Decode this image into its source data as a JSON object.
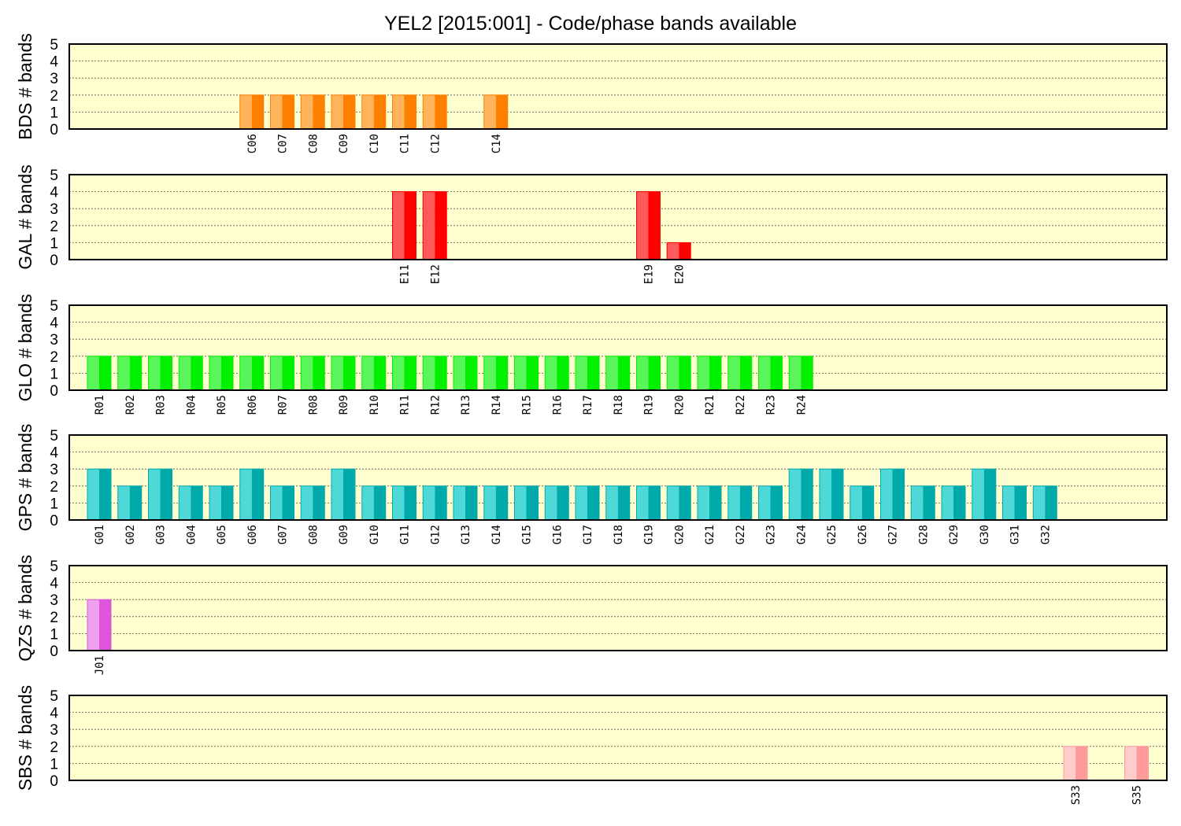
{
  "title": "YEL2 [2015:001] - Code/phase bands available",
  "chart_data": [
    {
      "type": "bar",
      "ylabel": "BDS # bands",
      "ylim": [
        0,
        5
      ],
      "yticks": [
        "0",
        "1",
        "2",
        "3",
        "4",
        "5"
      ],
      "grid": true,
      "colors": {
        "light": "#ffb35a",
        "dark": "#ff7f00"
      },
      "categories": [
        "C06",
        "C07",
        "C08",
        "C09",
        "C10",
        "C11",
        "C12",
        "C14"
      ],
      "slots": [
        6,
        7,
        8,
        9,
        10,
        11,
        12,
        14
      ],
      "values": [
        2,
        2,
        2,
        2,
        2,
        2,
        2,
        2
      ]
    },
    {
      "type": "bar",
      "ylabel": "GAL # bands",
      "ylim": [
        0,
        5
      ],
      "yticks": [
        "0",
        "1",
        "2",
        "3",
        "4",
        "5"
      ],
      "grid": true,
      "colors": {
        "light": "#ff5a5a",
        "dark": "#ff0000"
      },
      "categories": [
        "E11",
        "E12",
        "E19",
        "E20"
      ],
      "slots": [
        11,
        12,
        19,
        20
      ],
      "values": [
        4,
        4,
        4,
        1
      ]
    },
    {
      "type": "bar",
      "ylabel": "GLO # bands",
      "ylim": [
        0,
        5
      ],
      "yticks": [
        "0",
        "1",
        "2",
        "3",
        "4",
        "5"
      ],
      "grid": true,
      "colors": {
        "light": "#5af55a",
        "dark": "#00f000"
      },
      "categories": [
        "R01",
        "R02",
        "R03",
        "R04",
        "R05",
        "R06",
        "R07",
        "R08",
        "R09",
        "R10",
        "R11",
        "R12",
        "R13",
        "R14",
        "R15",
        "R16",
        "R17",
        "R18",
        "R19",
        "R20",
        "R21",
        "R22",
        "R23",
        "R24"
      ],
      "slots": [
        1,
        2,
        3,
        4,
        5,
        6,
        7,
        8,
        9,
        10,
        11,
        12,
        13,
        14,
        15,
        16,
        17,
        18,
        19,
        20,
        21,
        22,
        23,
        24
      ],
      "values": [
        2,
        2,
        2,
        2,
        2,
        2,
        2,
        2,
        2,
        2,
        2,
        2,
        2,
        2,
        2,
        2,
        2,
        2,
        2,
        2,
        2,
        2,
        2,
        2
      ]
    },
    {
      "type": "bar",
      "ylabel": "GPS # bands",
      "ylim": [
        0,
        5
      ],
      "yticks": [
        "0",
        "1",
        "2",
        "3",
        "4",
        "5"
      ],
      "grid": true,
      "colors": {
        "light": "#4ed8d8",
        "dark": "#00aaaa"
      },
      "categories": [
        "G01",
        "G02",
        "G03",
        "G04",
        "G05",
        "G06",
        "G07",
        "G08",
        "G09",
        "G10",
        "G11",
        "G12",
        "G13",
        "G14",
        "G15",
        "G16",
        "G17",
        "G18",
        "G19",
        "G20",
        "G21",
        "G22",
        "G23",
        "G24",
        "G25",
        "G26",
        "G27",
        "G28",
        "G29",
        "G30",
        "G31",
        "G32"
      ],
      "slots": [
        1,
        2,
        3,
        4,
        5,
        6,
        7,
        8,
        9,
        10,
        11,
        12,
        13,
        14,
        15,
        16,
        17,
        18,
        19,
        20,
        21,
        22,
        23,
        24,
        25,
        26,
        27,
        28,
        29,
        30,
        31,
        32
      ],
      "values": [
        3,
        2,
        3,
        2,
        2,
        3,
        2,
        2,
        3,
        2,
        2,
        2,
        2,
        2,
        2,
        2,
        2,
        2,
        2,
        2,
        2,
        2,
        2,
        3,
        3,
        2,
        3,
        2,
        2,
        3,
        2,
        2
      ]
    },
    {
      "type": "bar",
      "ylabel": "QZS # bands",
      "ylim": [
        0,
        5
      ],
      "yticks": [
        "0",
        "1",
        "2",
        "3",
        "4",
        "5"
      ],
      "grid": true,
      "colors": {
        "light": "#f0a0f0",
        "dark": "#dd55dd"
      },
      "categories": [
        "J01"
      ],
      "slots": [
        1
      ],
      "values": [
        3
      ]
    },
    {
      "type": "bar",
      "ylabel": "SBS # bands",
      "ylim": [
        0,
        5
      ],
      "yticks": [
        "0",
        "1",
        "2",
        "3",
        "4",
        "5"
      ],
      "grid": true,
      "colors": {
        "light": "#ffcccc",
        "dark": "#ff9a9a"
      },
      "categories": [
        "S33",
        "S35"
      ],
      "slots": [
        33,
        35
      ],
      "values": [
        2,
        2
      ]
    }
  ]
}
